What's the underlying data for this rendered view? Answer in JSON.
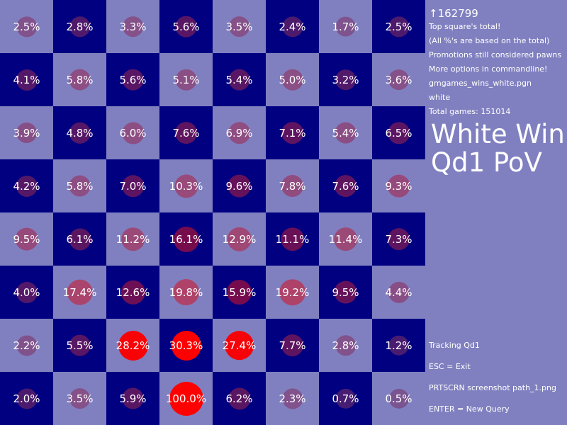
{
  "colors": {
    "light_square": "#8080c0",
    "dark_square": "#000080",
    "heat_low": "#7a3a7a",
    "heat_high": "#ff0000",
    "text": "#ffffff"
  },
  "board": {
    "ranks": [
      [
        2.5,
        2.8,
        3.3,
        5.6,
        3.5,
        2.4,
        1.7,
        2.5
      ],
      [
        4.1,
        5.8,
        5.6,
        5.1,
        5.4,
        5.0,
        3.2,
        3.6
      ],
      [
        3.9,
        4.8,
        6.0,
        7.6,
        6.9,
        7.1,
        5.4,
        6.5
      ],
      [
        4.2,
        5.8,
        7.0,
        10.3,
        9.6,
        7.8,
        7.6,
        9.3
      ],
      [
        9.5,
        6.1,
        11.2,
        16.1,
        12.9,
        11.1,
        11.4,
        7.3
      ],
      [
        4.0,
        17.4,
        12.6,
        19.8,
        15.9,
        19.2,
        9.5,
        4.4
      ],
      [
        2.2,
        5.5,
        28.2,
        30.3,
        27.4,
        7.7,
        2.8,
        1.2
      ],
      [
        2.0,
        3.5,
        5.9,
        100.0,
        6.2,
        2.3,
        0.7,
        0.5
      ]
    ]
  },
  "panel": {
    "total_top": "↑162799",
    "lines": [
      "Top square's total!",
      "(All %'s are based on the total)",
      "Promotions still considered pawns",
      "More options in commandline!",
      "gmgames_wins_white.pgn",
      "white",
      "Total games: 151014"
    ],
    "big_title_line1": "White Win",
    "big_title_line2": "Qd1 PoV",
    "bottom": [
      "Tracking Qd1",
      "ESC = Exit",
      "PRTSCRN screenshot path_1.png",
      "ENTER = New Query"
    ]
  }
}
